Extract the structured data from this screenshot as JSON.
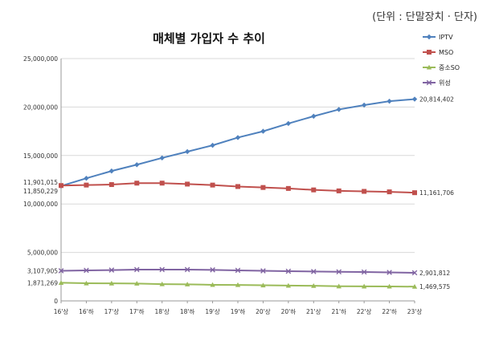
{
  "unit_note": "(단위 : 단말장치 · 단자)",
  "chart_data": {
    "type": "line",
    "title": "매체별 가입자 수 추이",
    "xlabel": "",
    "ylabel": "",
    "categories": [
      "16'상",
      "16'하",
      "17'상",
      "17'하",
      "18'상",
      "18'하",
      "19'상",
      "19'하",
      "20'상",
      "20'하",
      "21'상",
      "21'하",
      "22'상",
      "22'하",
      "23'상"
    ],
    "ylim": [
      0,
      25000000
    ],
    "yticks": [
      0,
      5000000,
      10000000,
      15000000,
      20000000,
      25000000
    ],
    "ytick_labels": [
      "0",
      "5,000,000",
      "10,000,000",
      "15,000,000",
      "20,000,000",
      "25,000,000"
    ],
    "grid": "horizontal at ticks",
    "legend_position": "right",
    "series": [
      {
        "name": "IPTV",
        "color": "#4F81BD",
        "marker": "diamond",
        "values": [
          11850229,
          12650000,
          13400000,
          14050000,
          14750000,
          15400000,
          16050000,
          16850000,
          17500000,
          18300000,
          19050000,
          19750000,
          20200000,
          20600000,
          20814402
        ]
      },
      {
        "name": "MSO",
        "color": "#C0504D",
        "marker": "square",
        "values": [
          11901015,
          11950000,
          12000000,
          12150000,
          12150000,
          12050000,
          11950000,
          11800000,
          11700000,
          11600000,
          11450000,
          11350000,
          11300000,
          11250000,
          11161706
        ]
      },
      {
        "name": "중소SO",
        "color": "#9BBB59",
        "marker": "triangle",
        "values": [
          1871269,
          1820000,
          1810000,
          1790000,
          1730000,
          1710000,
          1660000,
          1650000,
          1610000,
          1580000,
          1560000,
          1510000,
          1500000,
          1490000,
          1469575
        ]
      },
      {
        "name": "위성",
        "color": "#8064A2",
        "marker": "x",
        "values": [
          3107905,
          3150000,
          3180000,
          3230000,
          3230000,
          3230000,
          3200000,
          3150000,
          3100000,
          3060000,
          3030000,
          3000000,
          2980000,
          2940000,
          2901812
        ]
      }
    ],
    "annotations": {
      "start_labels": [
        "11,901,015",
        "11,850,229",
        "3,107,905",
        "1,871,269"
      ],
      "end_labels": [
        "20,814,402",
        "11,161,706",
        "2,901,812",
        "1,469,575"
      ]
    }
  }
}
